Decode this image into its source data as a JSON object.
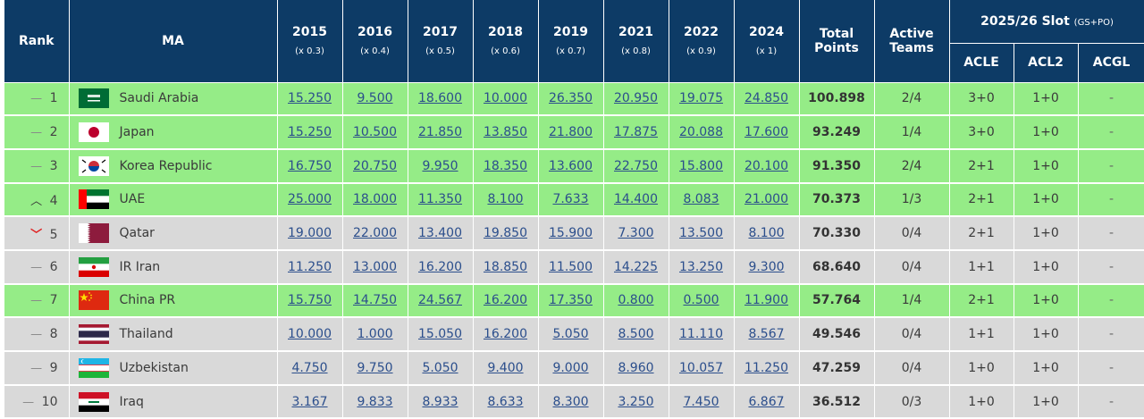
{
  "headers": {
    "rank": "Rank",
    "ma": "MA",
    "years": [
      {
        "year": "2015",
        "mult": "(x 0.3)"
      },
      {
        "year": "2016",
        "mult": "(x 0.4)"
      },
      {
        "year": "2017",
        "mult": "(x 0.5)"
      },
      {
        "year": "2018",
        "mult": "(x 0.6)"
      },
      {
        "year": "2019",
        "mult": "(x 0.7)"
      },
      {
        "year": "2021",
        "mult": "(x 0.8)"
      },
      {
        "year": "2022",
        "mult": "(x 0.9)"
      },
      {
        "year": "2024",
        "mult": "(x 1)"
      }
    ],
    "total_line1": "Total",
    "total_line2": "Points",
    "active_line1": "Active",
    "active_line2": "Teams",
    "slot_title": "2025/26 Slot",
    "slot_sub": "(GS+PO)",
    "acle": "ACLE",
    "acl2": "ACL2",
    "acgl": "ACGL"
  },
  "rows": [
    {
      "change": "same",
      "change_symbol": "—",
      "rank": "1",
      "flag": "saudi-arabia-flag",
      "ma": "Saudi Arabia",
      "values": [
        "15.250",
        "9.500",
        "18.600",
        "10.000",
        "26.350",
        "20.950",
        "19.075",
        "24.850"
      ],
      "total": "100.898",
      "active": "2/4",
      "acle": "3+0",
      "acl2": "1+0",
      "acgl": "-",
      "row_color": "green"
    },
    {
      "change": "same",
      "change_symbol": "—",
      "rank": "2",
      "flag": "japan-flag",
      "ma": "Japan",
      "values": [
        "15.250",
        "10.500",
        "21.850",
        "13.850",
        "21.800",
        "17.875",
        "20.088",
        "17.600"
      ],
      "total": "93.249",
      "active": "1/4",
      "acle": "3+0",
      "acl2": "1+0",
      "acgl": "-",
      "row_color": "green"
    },
    {
      "change": "same",
      "change_symbol": "—",
      "rank": "3",
      "flag": "korea-flag",
      "ma": "Korea Republic",
      "values": [
        "16.750",
        "20.750",
        "9.950",
        "18.350",
        "13.600",
        "22.750",
        "15.800",
        "20.100"
      ],
      "total": "91.350",
      "active": "2/4",
      "acle": "2+1",
      "acl2": "1+0",
      "acgl": "-",
      "row_color": "green"
    },
    {
      "change": "up",
      "change_symbol": "︿",
      "rank": "4",
      "flag": "uae-flag",
      "ma": "UAE",
      "values": [
        "25.000",
        "18.000",
        "11.350",
        "8.100",
        "7.633",
        "14.400",
        "8.083",
        "21.000"
      ],
      "total": "70.373",
      "active": "1/3",
      "acle": "2+1",
      "acl2": "1+0",
      "acgl": "-",
      "row_color": "green"
    },
    {
      "change": "down",
      "change_symbol": "﹀",
      "rank": "5",
      "flag": "qatar-flag",
      "ma": "Qatar",
      "values": [
        "19.000",
        "22.000",
        "13.400",
        "19.850",
        "15.900",
        "7.300",
        "13.500",
        "8.100"
      ],
      "total": "70.330",
      "active": "0/4",
      "acle": "2+1",
      "acl2": "1+0",
      "acgl": "-",
      "row_color": "grey"
    },
    {
      "change": "same",
      "change_symbol": "—",
      "rank": "6",
      "flag": "iran-flag",
      "ma": "IR Iran",
      "values": [
        "11.250",
        "13.000",
        "16.200",
        "18.850",
        "11.500",
        "14.225",
        "13.250",
        "9.300"
      ],
      "total": "68.640",
      "active": "0/4",
      "acle": "1+1",
      "acl2": "1+0",
      "acgl": "-",
      "row_color": "grey"
    },
    {
      "change": "same",
      "change_symbol": "—",
      "rank": "7",
      "flag": "china-flag",
      "ma": "China PR",
      "values": [
        "15.750",
        "14.750",
        "24.567",
        "16.200",
        "17.350",
        "0.800",
        "0.500",
        "11.900"
      ],
      "total": "57.764",
      "active": "1/4",
      "acle": "2+1",
      "acl2": "1+0",
      "acgl": "-",
      "row_color": "green"
    },
    {
      "change": "same",
      "change_symbol": "—",
      "rank": "8",
      "flag": "thailand-flag",
      "ma": "Thailand",
      "values": [
        "10.000",
        "1.000",
        "15.050",
        "16.200",
        "5.050",
        "8.500",
        "11.110",
        "8.567"
      ],
      "total": "49.546",
      "active": "0/4",
      "acle": "1+1",
      "acl2": "1+0",
      "acgl": "-",
      "row_color": "grey"
    },
    {
      "change": "same",
      "change_symbol": "—",
      "rank": "9",
      "flag": "uzbekistan-flag",
      "ma": "Uzbekistan",
      "values": [
        "4.750",
        "9.750",
        "5.050",
        "9.400",
        "9.000",
        "8.960",
        "10.057",
        "11.250"
      ],
      "total": "47.259",
      "active": "0/4",
      "acle": "1+0",
      "acl2": "1+0",
      "acgl": "-",
      "row_color": "grey"
    },
    {
      "change": "same",
      "change_symbol": "—",
      "rank": "10",
      "flag": "iraq-flag",
      "ma": "Iraq",
      "values": [
        "3.167",
        "9.833",
        "8.933",
        "8.633",
        "8.300",
        "3.250",
        "7.450",
        "6.867"
      ],
      "total": "36.512",
      "active": "0/3",
      "acle": "1+0",
      "acl2": "1+0",
      "acgl": "-",
      "row_color": "grey"
    }
  ],
  "colors": {
    "header": "#0d3b66",
    "green_row": "#95ec87",
    "grey_row": "#d9d9d9",
    "link": "#2b4e8c",
    "down": "#e02020"
  }
}
